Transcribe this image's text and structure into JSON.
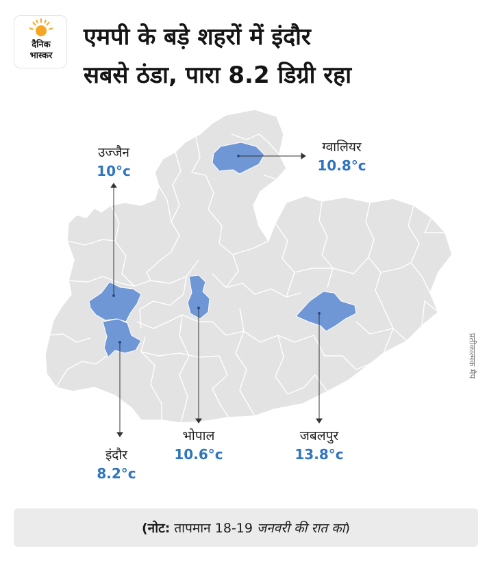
{
  "logo": {
    "line1": "दैनिक",
    "line2": "भास्कर",
    "sun_color": "#f6a623"
  },
  "title": {
    "line1": "एमपी के बड़े शहरों में इंदौर",
    "line2": "सबसे ठंडा, पारा 8.2 डिग्री रहा"
  },
  "cities": {
    "ujjain": {
      "name": "उज्जैन",
      "temp": "10°c"
    },
    "gwalior": {
      "name": "ग्वालियर",
      "temp": "10.8°c"
    },
    "indore": {
      "name": "इंदौर",
      "temp": "8.2°c"
    },
    "bhopal": {
      "name": "भोपाल",
      "temp": "10.6°c"
    },
    "jabalpur": {
      "name": "जबलपुर",
      "temp": "13.8°c"
    }
  },
  "map_note": "प्रतीकात्मक मैप",
  "footer": {
    "prefix": "(नोट:",
    "text": " तापमान 18-19 ",
    "italic": "जनवरी की रात का",
    "suffix": ")"
  },
  "colors": {
    "state_fill": "#e3e3e3",
    "district_border": "#ffffff",
    "highlight": "#6f97d6",
    "temp_text": "#2f74c0"
  }
}
